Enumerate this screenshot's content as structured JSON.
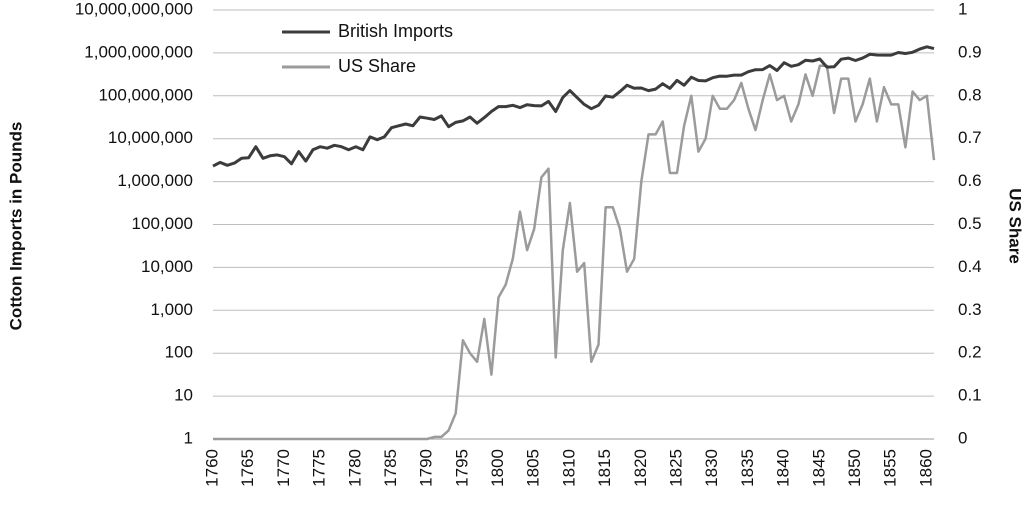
{
  "chart_data": {
    "type": "line",
    "x": [
      1760,
      1761,
      1762,
      1763,
      1764,
      1765,
      1766,
      1767,
      1768,
      1769,
      1770,
      1771,
      1772,
      1773,
      1774,
      1775,
      1776,
      1777,
      1778,
      1779,
      1780,
      1781,
      1782,
      1783,
      1784,
      1785,
      1786,
      1787,
      1788,
      1789,
      1790,
      1791,
      1792,
      1793,
      1794,
      1795,
      1796,
      1797,
      1798,
      1799,
      1800,
      1801,
      1802,
      1803,
      1804,
      1805,
      1806,
      1807,
      1808,
      1809,
      1810,
      1811,
      1812,
      1813,
      1814,
      1815,
      1816,
      1817,
      1818,
      1819,
      1820,
      1821,
      1822,
      1823,
      1824,
      1825,
      1826,
      1827,
      1828,
      1829,
      1830,
      1831,
      1832,
      1833,
      1834,
      1835,
      1836,
      1837,
      1838,
      1839,
      1840,
      1841,
      1842,
      1843,
      1844,
      1845,
      1846,
      1847,
      1848,
      1849,
      1850,
      1851,
      1852,
      1853,
      1854,
      1855,
      1856,
      1857,
      1858,
      1859,
      1860,
      1861
    ],
    "x_tick_labels": [
      "1760",
      "1765",
      "1770",
      "1775",
      "1780",
      "1785",
      "1790",
      "1795",
      "1800",
      "1805",
      "1810",
      "1815",
      "1820",
      "1825",
      "1830",
      "1835",
      "1840",
      "1845",
      "1850",
      "1855",
      "1860"
    ],
    "x_tick_values": [
      1760,
      1765,
      1770,
      1775,
      1780,
      1785,
      1790,
      1795,
      1800,
      1805,
      1810,
      1815,
      1820,
      1825,
      1830,
      1835,
      1840,
      1845,
      1850,
      1855,
      1860
    ],
    "y_left": {
      "label": "Cotton Imports in Pounds",
      "scale": "log",
      "lim": [
        1,
        10000000000
      ],
      "tick_values": [
        1,
        10,
        100,
        1000,
        10000,
        100000,
        1000000,
        10000000,
        100000000,
        1000000000,
        10000000000
      ],
      "tick_labels": [
        "1",
        "10",
        "100",
        "1,000",
        "10,000",
        "100,000",
        "1,000,000",
        "10,000,000",
        "100,000,000",
        "1,000,000,000",
        "10,000,000,000"
      ]
    },
    "y_right": {
      "label": "US Share",
      "scale": "linear",
      "lim": [
        0,
        1
      ],
      "tick_values": [
        0,
        0.1,
        0.2,
        0.3,
        0.4,
        0.5,
        0.6,
        0.7,
        0.8,
        0.9,
        1
      ],
      "tick_labels": [
        "0",
        "0.1",
        "0.2",
        "0.3",
        "0.4",
        "0.5",
        "0.6",
        "0.7",
        "0.8",
        "0.9",
        "1"
      ]
    },
    "grid": true,
    "legend_position": "top-left",
    "series": [
      {
        "name": "British Imports",
        "axis": "left",
        "color": "#3c3c3c",
        "values": [
          2300000,
          2800000,
          2400000,
          2700000,
          3500000,
          3600000,
          6500000,
          3500000,
          4000000,
          4200000,
          3800000,
          2600000,
          5000000,
          3000000,
          5500000,
          6500000,
          6000000,
          7000000,
          6500000,
          5500000,
          6500000,
          5500000,
          11000000,
          9500000,
          11000000,
          18000000,
          20000000,
          22000000,
          20000000,
          32000000,
          30000000,
          28000000,
          34000000,
          19000000,
          24000000,
          26000000,
          32000000,
          23000000,
          31000000,
          43000000,
          56000000,
          56000000,
          60000000,
          53000000,
          62000000,
          59000000,
          58000000,
          74000000,
          43000000,
          92000000,
          132000000,
          91000000,
          63000000,
          50000000,
          60000000,
          99000000,
          93000000,
          125000000,
          177000000,
          150000000,
          152000000,
          132000000,
          143000000,
          191000000,
          149000000,
          228000000,
          177000000,
          272000000,
          227000000,
          222000000,
          264000000,
          288000000,
          286000000,
          303000000,
          303000000,
          364000000,
          406000000,
          407000000,
          507000000,
          389000000,
          592000000,
          488000000,
          532000000,
          674000000,
          646000000,
          722000000,
          467000000,
          474000000,
          713000000,
          755000000,
          664000000,
          757000000,
          930000000,
          895000000,
          887000000,
          891000000,
          1023000000,
          969000000,
          1034000000,
          1226000000,
          1390000000,
          1257000000
        ]
      },
      {
        "name": "US Share",
        "axis": "right",
        "color": "#9b9b9b",
        "values": [
          0,
          0,
          0,
          0,
          0,
          0,
          0,
          0,
          0,
          0,
          0,
          0,
          0,
          0,
          0,
          0,
          0,
          0,
          0,
          0,
          0,
          0,
          0,
          0,
          0,
          0,
          0,
          0,
          0,
          0,
          0,
          0.005,
          0.005,
          0.02,
          0.06,
          0.23,
          0.2,
          0.18,
          0.28,
          0.15,
          0.33,
          0.36,
          0.42,
          0.53,
          0.44,
          0.49,
          0.61,
          0.63,
          0.19,
          0.44,
          0.55,
          0.39,
          0.41,
          0.18,
          0.22,
          0.54,
          0.54,
          0.49,
          0.39,
          0.42,
          0.6,
          0.71,
          0.71,
          0.74,
          0.62,
          0.62,
          0.73,
          0.8,
          0.67,
          0.7,
          0.8,
          0.77,
          0.77,
          0.79,
          0.83,
          0.77,
          0.72,
          0.79,
          0.85,
          0.79,
          0.8,
          0.74,
          0.78,
          0.85,
          0.8,
          0.87,
          0.87,
          0.76,
          0.84,
          0.84,
          0.74,
          0.78,
          0.84,
          0.74,
          0.82,
          0.78,
          0.78,
          0.68,
          0.81,
          0.79,
          0.8,
          0.65
        ]
      }
    ]
  }
}
